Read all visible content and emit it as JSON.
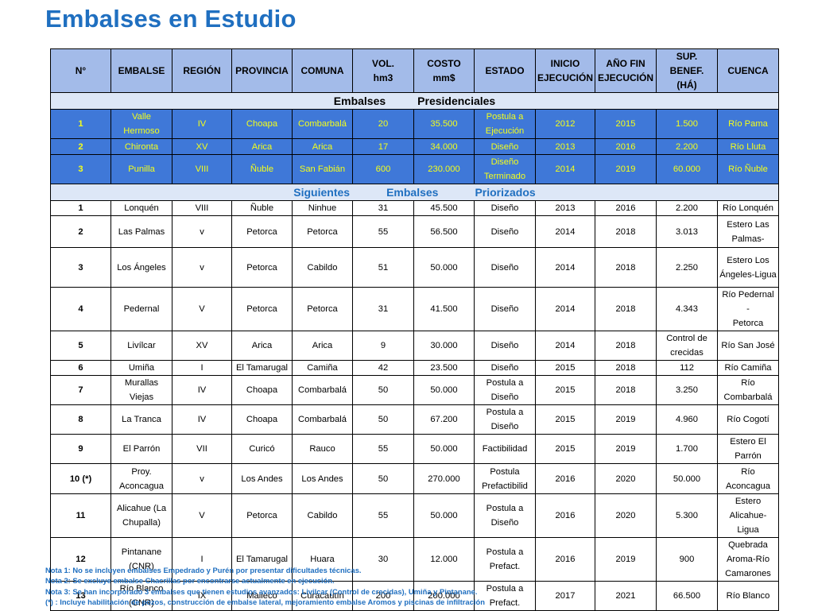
{
  "title": "Embalses en Estudio",
  "headers": [
    "N°",
    "EMBALSE",
    "REGIÓN",
    "PROVINCIA",
    "COMUNA",
    "VOL.\nhm3",
    "COSTO\nmm$",
    "ESTADO",
    "INICIO\nEJECUCIÓN",
    "AÑO FIN\nEJECUCIÓN",
    "SUP. BENEF.\n(HÁ)",
    "CUENCA"
  ],
  "section_presidential": [
    "Embalses",
    "Presidenciales"
  ],
  "presidential_rows": [
    [
      "1",
      "Valle\nHermoso",
      "IV",
      "Choapa",
      "Combarbalá",
      "20",
      "35.500",
      "Postula a\nEjecución",
      "2012",
      "2015",
      "1.500",
      "Río Pama"
    ],
    [
      "2",
      "Chironta",
      "XV",
      "Arica",
      "Arica",
      "17",
      "34.000",
      "Diseño",
      "2013",
      "2016",
      "2.200",
      "Río Lluta"
    ],
    [
      "3",
      "Punilla",
      "VIII",
      "Ñuble",
      "San Fabián",
      "600",
      "230.000",
      "Diseño\nTerminado",
      "2014",
      "2019",
      "60.000",
      "Río Ñuble"
    ]
  ],
  "section_prioritized": [
    "Siguientes",
    "Embalses",
    "Priorizados"
  ],
  "prioritized_rows": [
    [
      "1",
      "Lonquén",
      "VIII",
      "Ñuble",
      "Ninhue",
      "31",
      "45.500",
      "Diseño",
      "2013",
      "2016",
      "2.200",
      "Río Lonquén"
    ],
    [
      "2",
      "Las Palmas",
      "v",
      "Petorca",
      "Petorca",
      "55",
      "56.500",
      "Diseño",
      "2014",
      "2018",
      "3.013",
      "Estero Las\nPalmas-"
    ],
    [
      "3",
      "Los Ángeles",
      "v",
      "Petorca",
      "Cabildo",
      "51",
      "50.000",
      "Diseño",
      "2014",
      "2018",
      "2.250",
      "Estero Los\nÁngeles-Ligua"
    ],
    [
      "4",
      "Pedernal",
      "V",
      "Petorca",
      "Petorca",
      "31",
      "41.500",
      "Diseño",
      "2014",
      "2018",
      "4.343",
      "Río Pedernal -\nPetorca"
    ],
    [
      "5",
      "Livílcar",
      "XV",
      "Arica",
      "Arica",
      "9",
      "30.000",
      "Diseño",
      "2014",
      "2018",
      "Control de\ncrecidas",
      "Río San José"
    ],
    [
      "6",
      "Umiña",
      "I",
      "El Tamarugal",
      "Camiña",
      "42",
      "23.500",
      "Diseño",
      "2015",
      "2018",
      "112",
      "Río Camiña"
    ],
    [
      "7",
      "Murallas\nViejas",
      "IV",
      "Choapa",
      "Combarbalá",
      "50",
      "50.000",
      "Postula a\nDiseño",
      "2015",
      "2018",
      "3.250",
      "Río\nCombarbalá"
    ],
    [
      "8",
      "La Tranca",
      "IV",
      "Choapa",
      "Combarbalá",
      "50",
      "67.200",
      "Postula a\nDiseño",
      "2015",
      "2019",
      "4.960",
      "Río Cogotí"
    ],
    [
      "9",
      "El Parrón",
      "VII",
      "Curicó",
      "Rauco",
      "55",
      "50.000",
      "Factibilidad",
      "2015",
      "2019",
      "1.700",
      "Estero El\nParrón"
    ],
    [
      "10 (*)",
      "Proy.\nAconcagua",
      "v",
      "Los Andes",
      "Los Andes",
      "50",
      "270.000",
      "Postula\nPrefactibilid",
      "2016",
      "2020",
      "50.000",
      "Río\nAconcagua"
    ],
    [
      "11",
      "Alicahue (La\nChupalla)",
      "V",
      "Petorca",
      "Cabildo",
      "55",
      "50.000",
      "Postula a\nDiseño",
      "2016",
      "2020",
      "5.300",
      "Estero\nAlicahue-\nLigua"
    ],
    [
      "12",
      "Pintanane\n(CNR)",
      "I",
      "El Tamarugal",
      "Huara",
      "30",
      "12.000",
      "Postula a\nPrefact.",
      "2016",
      "2019",
      "900",
      "Quebrada\nAroma-Río\nCamarones"
    ],
    [
      "13",
      "Río Blanco\n(CNR)",
      "IX",
      "Malleco",
      "Curacautín",
      "200",
      "200.000",
      "Postula a\nPrefact.",
      "2017",
      "2021",
      "66.500",
      "Río Blanco"
    ]
  ],
  "notes": [
    "Nota 1: No se incluyen embalses Empedrado y Purén por presentar dificultades técnicas.",
    "Nota 2: Se excluye embalse Chacrillas por encontrarse actualmente en ejecución.",
    "Nota 3: Se han incorporado 3 embalses que tienen estudios avanzados: Livilcar (Control de crecidas), Umiña y Pintanane.",
    "(*) : Incluye habilitación de pozos, construcción de embalse lateral, mejoramiento embalse Aromos y piscinas de infiltración"
  ],
  "colors": {
    "title": "#1f6fc0",
    "header_bg": "#a3bbe9",
    "section_bg": "#dde7f7",
    "presidential_bg": "#3f78d8",
    "presidential_text": "#f4ff1a",
    "notes_text": "#1f6fc0"
  }
}
